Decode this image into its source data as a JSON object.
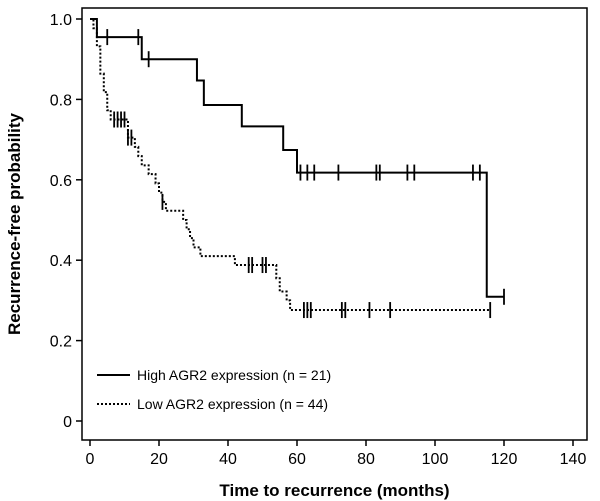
{
  "chart_data": {
    "type": "line",
    "subtype": "kaplan-meier",
    "title": "",
    "xlabel": "Time to recurrence (months)",
    "ylabel": "Recurrence-free probability",
    "xlim": [
      0,
      140
    ],
    "ylim": [
      0,
      1.0
    ],
    "xticks": [
      "0",
      "20",
      "40",
      "60",
      "80",
      "100",
      "120",
      "140"
    ],
    "yticks": [
      "0",
      "0.2",
      "0.4",
      "0.6",
      "0.8",
      "1.0"
    ],
    "grid": false,
    "legend_position": "bottom-left",
    "series": [
      {
        "name": "High AGR2 expression (n = 21)",
        "line_style": "solid",
        "color": "#000000",
        "steps": [
          [
            0,
            1.0
          ],
          [
            2,
            0.955
          ],
          [
            15,
            0.9
          ],
          [
            31,
            0.847
          ],
          [
            33,
            0.786
          ],
          [
            44,
            0.733
          ],
          [
            56,
            0.674
          ],
          [
            60,
            0.618
          ],
          [
            115,
            0.309
          ],
          [
            120,
            0.309
          ]
        ],
        "censored": [
          5,
          14,
          17,
          61,
          63,
          65,
          72,
          83,
          84,
          92,
          94,
          111,
          113,
          120
        ]
      },
      {
        "name": "Low AGR2 expression (n = 44)",
        "line_style": "dotted",
        "color": "#000000",
        "steps": [
          [
            0,
            1.0
          ],
          [
            1,
            0.977
          ],
          [
            2,
            0.932
          ],
          [
            3,
            0.864
          ],
          [
            4,
            0.818
          ],
          [
            5,
            0.773
          ],
          [
            6,
            0.75
          ],
          [
            11,
            0.705
          ],
          [
            13,
            0.682
          ],
          [
            14,
            0.659
          ],
          [
            15,
            0.636
          ],
          [
            17,
            0.614
          ],
          [
            19,
            0.591
          ],
          [
            20,
            0.568
          ],
          [
            21,
            0.545
          ],
          [
            22,
            0.523
          ],
          [
            27,
            0.5
          ],
          [
            28,
            0.477
          ],
          [
            29,
            0.455
          ],
          [
            30,
            0.432
          ],
          [
            32,
            0.41
          ],
          [
            42,
            0.388
          ],
          [
            54,
            0.355
          ],
          [
            55,
            0.322
          ],
          [
            57,
            0.3
          ],
          [
            58,
            0.276
          ],
          [
            116,
            0.276
          ]
        ],
        "censored": [
          7,
          8,
          9,
          10,
          11,
          12,
          21,
          46,
          47,
          50,
          51,
          62,
          63,
          64,
          73,
          74,
          81,
          87,
          116
        ]
      }
    ]
  }
}
